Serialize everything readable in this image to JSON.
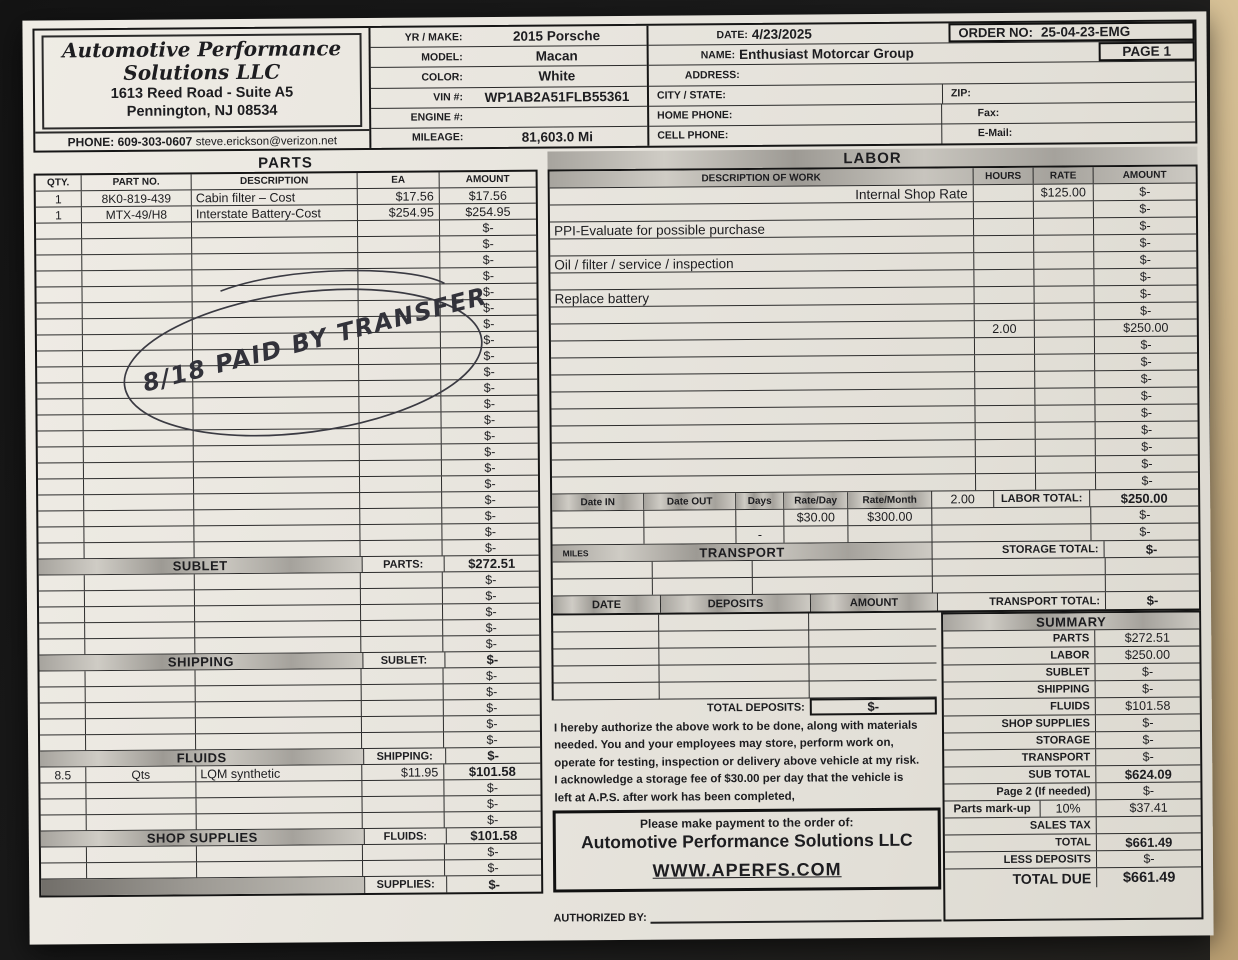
{
  "company": {
    "name_line1": "Automotive Performance",
    "name_line2": "Solutions LLC",
    "address1": "1613 Reed Road - Suite A5",
    "address2": "Pennington, NJ 08534",
    "phone_label": "PHONE:",
    "phone": "609-303-0607",
    "email": "steve.erickson@verizon.net"
  },
  "vehicle": {
    "rows": [
      {
        "label": "YR / MAKE:",
        "value": "2015 Porsche"
      },
      {
        "label": "MODEL:",
        "value": "Macan"
      },
      {
        "label": "COLOR:",
        "value": "White"
      },
      {
        "label": "VIN #:",
        "value": "WP1AB2A51FLB55361"
      },
      {
        "label": "ENGINE #:",
        "value": ""
      },
      {
        "label": "MILEAGE:",
        "value": "81,603.0 Mi"
      }
    ]
  },
  "customer": {
    "date_label": "DATE:",
    "date": "4/23/2025",
    "order_no_label": "ORDER NO:",
    "order_no": "25-04-23-EMG",
    "name_label": "NAME:",
    "name": "Enthusiast Motorcar Group",
    "page_label": "PAGE 1",
    "address_label": "ADDRESS:",
    "city_state_label": "CITY / STATE:",
    "zip_label": "ZIP:",
    "home_phone_label": "HOME PHONE:",
    "fax_label": "Fax:",
    "cell_phone_label": "CELL PHONE:",
    "email_label": "E-Mail:"
  },
  "parts": {
    "title": "PARTS",
    "headers": [
      "QTY.",
      "PART NO.",
      "DESCRIPTION",
      "EA",
      "AMOUNT"
    ],
    "rows": [
      [
        "1",
        "8K0-819-439",
        "Cabin filter – Cost",
        "$17.56",
        "$17.56"
      ],
      [
        "1",
        "MTX-49/H8",
        "Interstate Battery-Cost",
        "$254.95",
        "$254.95"
      ]
    ],
    "blank_row_count": 21,
    "blank_amount": "$-"
  },
  "left_sections": [
    {
      "band": "SUBLET",
      "band_total_label": "PARTS:",
      "band_total": "$272.51",
      "blank_rows": 5
    },
    {
      "band": "SHIPPING",
      "band_total_label": "SUBLET:",
      "band_total": "$-",
      "blank_rows": 5
    },
    {
      "band": "FLUIDS",
      "band_total_label": "SHIPPING:",
      "band_total": "$-",
      "filled_rows": [
        [
          "8.5",
          "Qts",
          "LQM synthetic",
          "$11.95",
          "$101.58"
        ]
      ],
      "blank_rows": 3
    },
    {
      "band": "SHOP SUPPLIES",
      "band_total_label": "FLUIDS:",
      "band_total": "$101.58",
      "blank_rows": 2
    }
  ],
  "left_footer": {
    "total_label": "SUPPLIES:",
    "total": "$-"
  },
  "labor": {
    "title": "LABOR",
    "headers": [
      "DESCRIPTION OF WORK",
      "HOURS",
      "RATE",
      "AMOUNT"
    ],
    "rows": [
      {
        "desc": "Internal Shop Rate",
        "align": "right",
        "rate": "$125.00",
        "amount": "$-"
      },
      {
        "amount": "$-"
      },
      {
        "desc": "PPI-Evaluate for possible purchase",
        "amount": "$-"
      },
      {
        "amount": "$-"
      },
      {
        "desc": "Oil / filter / service / inspection",
        "amount": "$-"
      },
      {
        "amount": "$-"
      },
      {
        "desc": "Replace battery",
        "amount": "$-"
      },
      {
        "amount": "$-"
      },
      {
        "hours": "2.00",
        "amount": "$250.00"
      },
      {
        "amount": "$-"
      },
      {
        "amount": "$-"
      },
      {
        "amount": "$-"
      },
      {
        "amount": "$-"
      },
      {
        "amount": "$-"
      },
      {
        "amount": "$-"
      },
      {
        "amount": "$-"
      },
      {
        "amount": "$-"
      },
      {
        "amount": "$-"
      }
    ],
    "total_hours": "2.00",
    "total_label": "LABOR TOTAL:",
    "total": "$250.00"
  },
  "storage": {
    "headers": [
      "Date IN",
      "Date OUT",
      "Days",
      "Rate/Day",
      "Rate/Month"
    ],
    "rows": [
      [
        "",
        "",
        "",
        "$30.00",
        "$300.00"
      ],
      [
        "",
        "",
        "-",
        "",
        ""
      ]
    ],
    "row_amounts": [
      "$-",
      "$-"
    ],
    "total_label": "STORAGE TOTAL:",
    "total": "$-"
  },
  "transport": {
    "title": "TRANSPORT",
    "miles_label": "MILES",
    "blank_rows": 2,
    "total_label": "TRANSPORT TOTAL:",
    "total": "$-"
  },
  "deposits": {
    "headers": [
      "DATE",
      "DEPOSITS",
      "AMOUNT"
    ],
    "blank_rows": 5,
    "total_label": "TOTAL DEPOSITS:",
    "total": "$-"
  },
  "summary": {
    "title": "SUMMARY",
    "rows": [
      {
        "label": "PARTS",
        "value": "$272.51"
      },
      {
        "label": "LABOR",
        "value": "$250.00"
      },
      {
        "label": "SUBLET",
        "value": "$-"
      },
      {
        "label": "SHIPPING",
        "value": "$-"
      },
      {
        "label": "FLUIDS",
        "value": "$101.58"
      },
      {
        "label": "SHOP SUPPLIES",
        "value": "$-"
      },
      {
        "label": "STORAGE",
        "value": "$-"
      },
      {
        "label": "TRANSPORT",
        "value": "$-"
      },
      {
        "label": "SUB TOTAL",
        "value": "$624.09",
        "bold": true
      },
      {
        "label": "Page 2 (If needed)",
        "value": "$-"
      },
      {
        "label": "Parts mark-up",
        "pct": "10%",
        "value": "$37.41"
      },
      {
        "label": "SALES TAX",
        "value": ""
      },
      {
        "label": "TOTAL",
        "value": "$661.49",
        "bold": true
      },
      {
        "label": "LESS DEPOSITS",
        "value": "$-"
      },
      {
        "label": "TOTAL DUE",
        "value": "$661.49",
        "big": true
      }
    ]
  },
  "authorization_lines": [
    "I hereby authorize the above work to be done, along with materials",
    "needed. You and your employees may store, perform work on,",
    "operate for testing, inspection or delivery above vehicle at  my risk.",
    "I acknowledge a storage fee of $30.00 per day that the vehicle is",
    "left at A.P.S. after work has been completed,"
  ],
  "payment": {
    "line1": "Please make payment to the order of:",
    "line2": "Automotive Performance Solutions LLC",
    "line3": "WWW.APERFS.COM"
  },
  "authorized_by_label": "AUTHORIZED BY:",
  "handwriting": {
    "text": "8/18 PAID BY TRANSFER"
  }
}
